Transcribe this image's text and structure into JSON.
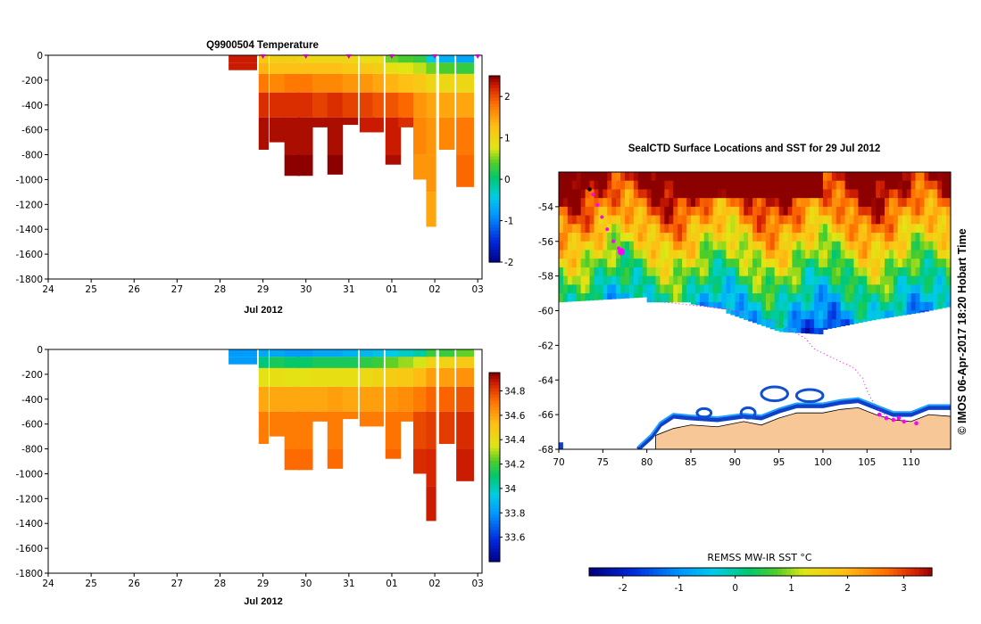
{
  "chart_data": [
    {
      "type": "heatmap",
      "title": "Q9900504  Temperature",
      "xlabel": "Jul 2012",
      "xticks": [
        "24",
        "25",
        "26",
        "27",
        "28",
        "29",
        "30",
        "31",
        "01",
        "02",
        "03"
      ],
      "yticks": [
        0,
        -200,
        -400,
        -600,
        -800,
        -1000,
        -1200,
        -1400,
        -1600,
        -1800
      ],
      "ylim": [
        -1800,
        0
      ],
      "colorbar": {
        "min": -2,
        "max": 2.5,
        "ticks": [
          2,
          1,
          0,
          -1,
          -2
        ]
      },
      "profile_markers_days": [
        29,
        30,
        31,
        32,
        33,
        34
      ],
      "profiles": [
        {
          "day": 28.2,
          "width": 0.65,
          "depth": -120,
          "layers": [
            2.3,
            2.3,
            2.3,
            2.3,
            2.3,
            2.3,
            2.3
          ]
        },
        {
          "day": 28.9,
          "width": 0.22,
          "depth": -760,
          "layers": [
            1.2,
            1.4,
            1.8,
            2.2,
            2.4,
            2.5,
            2.5
          ]
        },
        {
          "day": 29.15,
          "width": 0.35,
          "depth": -700,
          "layers": [
            1.1,
            1.3,
            1.7,
            2.2,
            2.4,
            2.5,
            2.5
          ]
        },
        {
          "day": 29.5,
          "width": 0.35,
          "depth": -970,
          "layers": [
            1.1,
            1.3,
            1.8,
            2.2,
            2.4,
            2.5,
            2.4
          ]
        },
        {
          "day": 29.8,
          "width": 0.35,
          "depth": -970,
          "layers": [
            1.0,
            1.3,
            1.8,
            2.2,
            2.4,
            2.5,
            2.4
          ]
        },
        {
          "day": 30.15,
          "width": 0.35,
          "depth": -580,
          "layers": [
            1.0,
            1.3,
            1.7,
            2.1,
            2.4,
            2.5,
            2.5
          ]
        },
        {
          "day": 30.5,
          "width": 0.35,
          "depth": -960,
          "layers": [
            1.0,
            1.3,
            1.7,
            2.2,
            2.4,
            2.5,
            2.4
          ]
        },
        {
          "day": 30.85,
          "width": 0.35,
          "depth": -560,
          "layers": [
            1.0,
            1.2,
            1.6,
            2.1,
            2.4,
            2.5,
            2.5
          ]
        },
        {
          "day": 31.25,
          "width": 0.35,
          "depth": -620,
          "layers": [
            0.9,
            1.2,
            1.6,
            2.1,
            2.3,
            2.5,
            2.5
          ]
        },
        {
          "day": 31.55,
          "width": 0.25,
          "depth": -620,
          "layers": [
            0.9,
            1.1,
            1.5,
            2.0,
            2.3,
            2.4,
            2.4
          ]
        },
        {
          "day": 31.85,
          "width": 0.35,
          "depth": -880,
          "layers": [
            0.5,
            0.9,
            1.4,
            2.0,
            2.3,
            2.4,
            2.3
          ]
        },
        {
          "day": 32.15,
          "width": 0.35,
          "depth": -580,
          "layers": [
            0.4,
            0.8,
            1.3,
            1.9,
            2.2,
            2.3,
            2.3
          ]
        },
        {
          "day": 32.5,
          "width": 0.35,
          "depth": -1000,
          "layers": [
            0.3,
            0.7,
            1.2,
            1.6,
            1.7,
            1.6,
            1.6
          ]
        },
        {
          "day": 32.8,
          "width": 0.22,
          "depth": -1380,
          "layers": [
            -0.4,
            0.5,
            1.0,
            1.5,
            1.6,
            1.6,
            1.5
          ]
        },
        {
          "day": 33.1,
          "width": 0.35,
          "depth": -760,
          "layers": [
            -0.6,
            0.4,
            1.0,
            1.5,
            1.7,
            1.7,
            1.7
          ]
        },
        {
          "day": 33.5,
          "width": 0.4,
          "depth": -1060,
          "layers": [
            -0.7,
            0.3,
            1.0,
            1.5,
            1.8,
            1.9,
            1.9
          ]
        }
      ]
    },
    {
      "type": "heatmap",
      "title": "",
      "xlabel": "Jul 2012",
      "xticks": [
        "24",
        "25",
        "26",
        "27",
        "28",
        "29",
        "30",
        "31",
        "01",
        "02",
        "03"
      ],
      "yticks": [
        0,
        -200,
        -400,
        -600,
        -800,
        -1000,
        -1200,
        -1400,
        -1600,
        -1800
      ],
      "ylim": [
        -1800,
        0
      ],
      "colorbar": {
        "min": 33.4,
        "max": 34.95,
        "ticks": [
          34.8,
          34.6,
          34.4,
          34.2,
          34,
          33.8,
          33.6
        ]
      },
      "profiles": [
        {
          "day": 28.2,
          "width": 0.65,
          "depth": -120,
          "layers": [
            33.82,
            33.82,
            33.82,
            33.82,
            33.82,
            33.82,
            33.82
          ]
        },
        {
          "day": 28.9,
          "width": 0.22,
          "depth": -760,
          "layers": [
            33.85,
            34.1,
            34.38,
            34.6,
            34.7,
            34.72,
            34.72
          ]
        },
        {
          "day": 29.15,
          "width": 0.35,
          "depth": -700,
          "layers": [
            33.85,
            34.15,
            34.4,
            34.6,
            34.7,
            34.72,
            34.72
          ]
        },
        {
          "day": 29.5,
          "width": 0.35,
          "depth": -970,
          "layers": [
            33.82,
            34.12,
            34.38,
            34.6,
            34.7,
            34.74,
            34.75
          ]
        },
        {
          "day": 29.8,
          "width": 0.35,
          "depth": -970,
          "layers": [
            33.82,
            34.12,
            34.38,
            34.6,
            34.7,
            34.74,
            34.75
          ]
        },
        {
          "day": 30.15,
          "width": 0.35,
          "depth": -580,
          "layers": [
            33.85,
            34.15,
            34.4,
            34.6,
            34.7,
            34.72,
            34.72
          ]
        },
        {
          "day": 30.5,
          "width": 0.35,
          "depth": -960,
          "layers": [
            33.85,
            34.15,
            34.4,
            34.62,
            34.7,
            34.74,
            34.75
          ]
        },
        {
          "day": 30.85,
          "width": 0.35,
          "depth": -560,
          "layers": [
            33.88,
            34.15,
            34.4,
            34.6,
            34.7,
            34.72,
            34.72
          ]
        },
        {
          "day": 31.25,
          "width": 0.35,
          "depth": -620,
          "layers": [
            33.9,
            34.18,
            34.42,
            34.62,
            34.7,
            34.72,
            34.72
          ]
        },
        {
          "day": 31.55,
          "width": 0.25,
          "depth": -620,
          "layers": [
            33.92,
            34.2,
            34.44,
            34.62,
            34.7,
            34.72,
            34.72
          ]
        },
        {
          "day": 31.85,
          "width": 0.35,
          "depth": -880,
          "layers": [
            33.95,
            34.25,
            34.48,
            34.64,
            34.72,
            34.75,
            34.76
          ]
        },
        {
          "day": 32.15,
          "width": 0.35,
          "depth": -580,
          "layers": [
            34.0,
            34.3,
            34.5,
            34.66,
            34.72,
            34.74,
            34.74
          ]
        },
        {
          "day": 32.5,
          "width": 0.35,
          "depth": -1000,
          "layers": [
            34.05,
            34.35,
            34.55,
            34.7,
            34.8,
            34.85,
            34.88
          ]
        },
        {
          "day": 32.8,
          "width": 0.22,
          "depth": -1380,
          "layers": [
            34.2,
            34.45,
            34.62,
            34.75,
            34.82,
            34.86,
            34.88
          ]
        },
        {
          "day": 33.1,
          "width": 0.35,
          "depth": -760,
          "layers": [
            34.2,
            34.45,
            34.62,
            34.75,
            34.82,
            34.86,
            34.88
          ]
        },
        {
          "day": 33.5,
          "width": 0.4,
          "depth": -1060,
          "layers": [
            34.25,
            34.5,
            34.65,
            34.78,
            34.85,
            34.88,
            34.9
          ]
        }
      ]
    },
    {
      "type": "heatmap",
      "title": "SealCTD Surface Locations and SST for 29 Jul 2012",
      "xlabel": "",
      "ylabel": "",
      "xticks": [
        70,
        75,
        80,
        85,
        90,
        95,
        100,
        105,
        110
      ],
      "yticks": [
        -54,
        -56,
        -58,
        -60,
        -62,
        -64,
        -66,
        -68
      ],
      "xlim": [
        70,
        114.5
      ],
      "ylim": [
        -68,
        -52
      ],
      "land_color": "#f7c797",
      "track_color": "#ff00ff",
      "seal_track": [
        [
          73.5,
          -53.0
        ],
        [
          73.9,
          -53.3
        ],
        [
          74.4,
          -53.9
        ],
        [
          74.9,
          -54.6
        ],
        [
          75.5,
          -55.3
        ],
        [
          76.2,
          -56.0
        ],
        [
          76.8,
          -56.4
        ]
      ],
      "seal_recent": [
        77.1,
        -56.6
      ],
      "dotted_track": [
        [
          80,
          -59.4
        ],
        [
          89,
          -59.9
        ],
        [
          94.5,
          -60.6
        ],
        [
          98,
          -61.6
        ],
        [
          99,
          -62.2
        ],
        [
          101,
          -62.7
        ],
        [
          103.5,
          -63.3
        ],
        [
          104.5,
          -63.9
        ],
        [
          105,
          -64.6
        ],
        [
          105.6,
          -65.2
        ],
        [
          106.3,
          -65.7
        ],
        [
          107.3,
          -66.1
        ]
      ],
      "magenta_cluster": [
        [
          106.4,
          -66.0
        ],
        [
          107.2,
          -66.2
        ],
        [
          108.0,
          -66.3
        ],
        [
          108.6,
          -66.2
        ],
        [
          109.2,
          -66.4
        ],
        [
          110.6,
          -66.5
        ]
      ],
      "stamp": "© IMOS 06-Apr-2017 18:20 Hobart Time",
      "colorbar": {
        "label": "REMSS MW-IR SST °C",
        "min": -2.6,
        "max": 3.5,
        "ticks": [
          -2,
          -1,
          0,
          1,
          2,
          3
        ]
      }
    }
  ]
}
